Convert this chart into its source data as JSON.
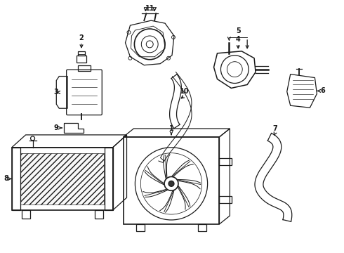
{
  "bg_color": "#ffffff",
  "line_color": "#1a1a1a",
  "lw": 0.9,
  "fig_w": 4.9,
  "fig_h": 3.6,
  "dpi": 100
}
